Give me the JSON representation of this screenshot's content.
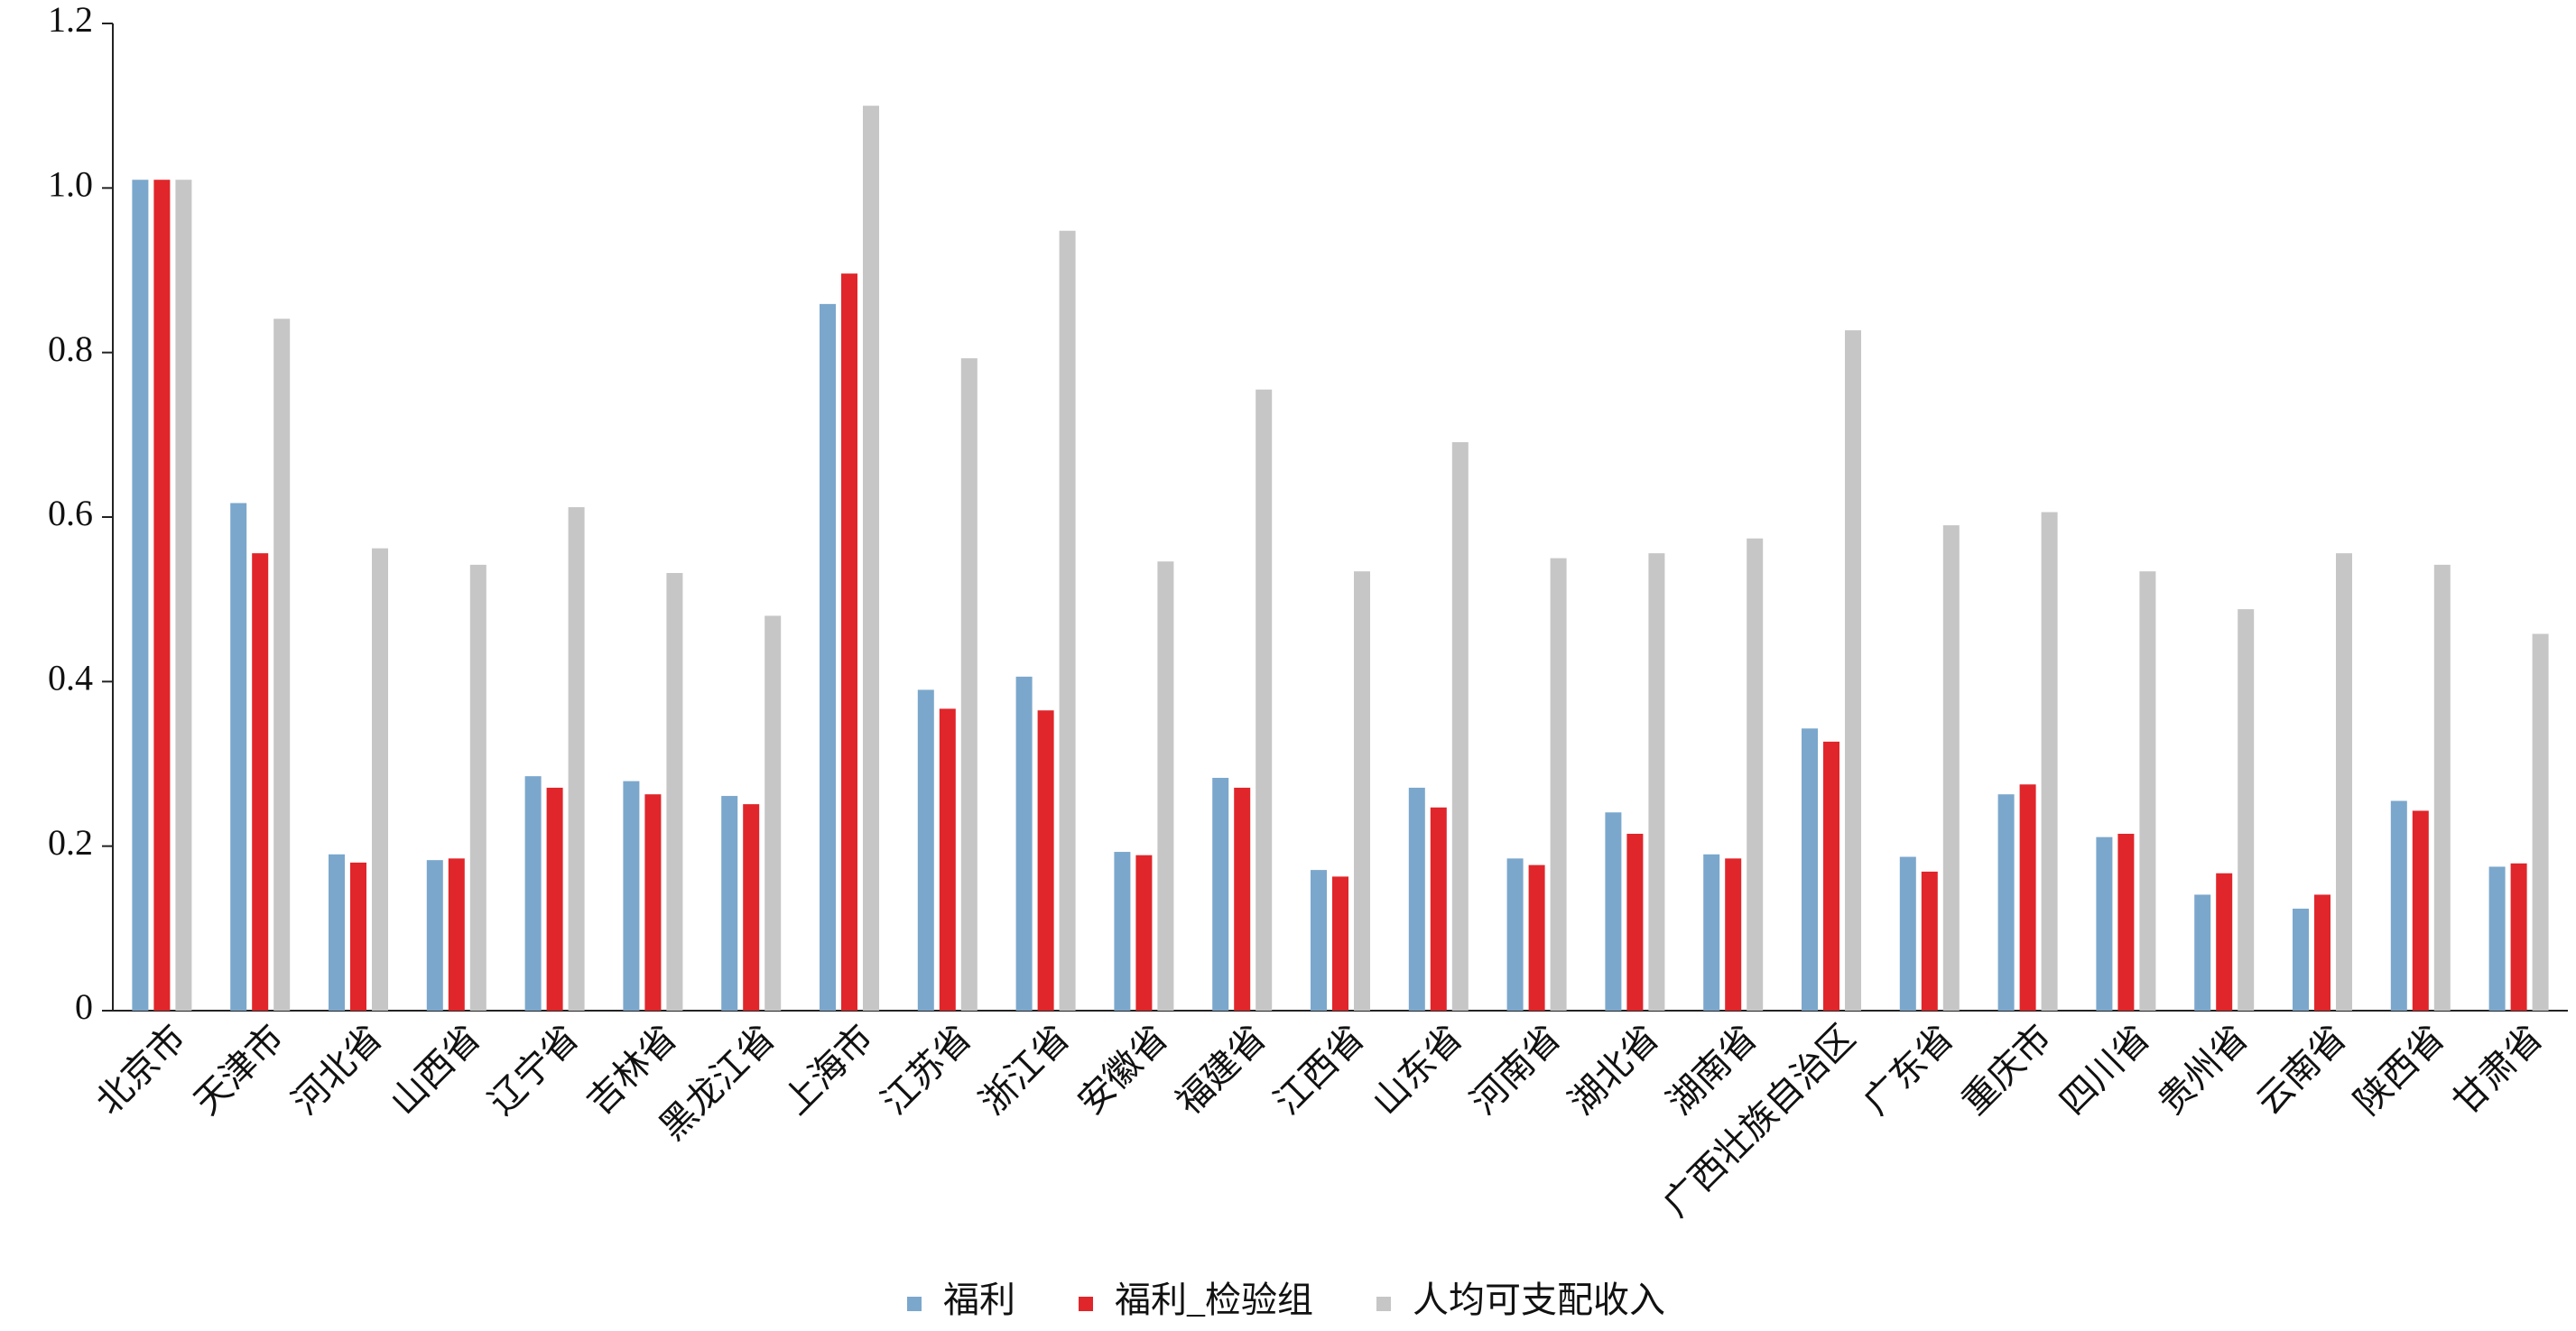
{
  "chart_data": {
    "type": "bar",
    "categories": [
      "北京市",
      "天津市",
      "河北省",
      "山西省",
      "辽宁省",
      "吉林省",
      "黑龙江省",
      "上海市",
      "江苏省",
      "浙江省",
      "安徽省",
      "福建省",
      "江西省",
      "山东省",
      "河南省",
      "湖北省",
      "湖南省",
      "广西壮族自治区",
      "广东省",
      "重庆市",
      "四川省",
      "贵州省",
      "云南省",
      "陕西省",
      "甘肃省"
    ],
    "series": [
      {
        "name": "福利",
        "color": "#7ba7cc",
        "values": [
          1.01,
          0.617,
          0.19,
          0.183,
          0.285,
          0.279,
          0.261,
          0.859,
          0.39,
          0.406,
          0.193,
          0.283,
          0.171,
          0.271,
          0.185,
          0.241,
          0.19,
          0.343,
          0.187,
          0.263,
          0.211,
          0.141,
          0.124,
          0.255,
          0.175
        ]
      },
      {
        "name": "福利_检验组",
        "color": "#e0262a",
        "values": [
          1.01,
          0.556,
          0.18,
          0.185,
          0.271,
          0.263,
          0.251,
          0.896,
          0.367,
          0.365,
          0.189,
          0.271,
          0.163,
          0.247,
          0.177,
          0.215,
          0.185,
          0.327,
          0.169,
          0.275,
          0.215,
          0.167,
          0.141,
          0.243,
          0.179
        ]
      },
      {
        "name": "人均可支配收入",
        "color": "#c6c6c6",
        "values": [
          1.01,
          0.841,
          0.562,
          0.542,
          0.612,
          0.532,
          0.48,
          1.1,
          0.793,
          0.948,
          0.546,
          0.755,
          0.534,
          0.691,
          0.55,
          0.556,
          0.574,
          0.827,
          0.59,
          0.606,
          0.534,
          0.488,
          0.556,
          0.542,
          0.458
        ]
      }
    ],
    "ylim": [
      0,
      1.2
    ],
    "yticks": [
      0,
      0.2,
      0.4,
      0.6,
      0.8,
      {
        "value": 1,
        "label": "1.0"
      },
      1.2
    ],
    "grid": false,
    "legend": "bottom"
  }
}
